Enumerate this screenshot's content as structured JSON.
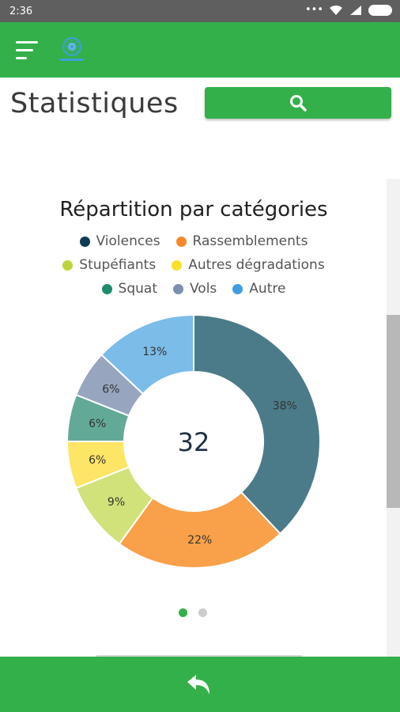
{
  "status_bar": {
    "time": "2:36"
  },
  "app_bar": {
    "menu_icon": "hamburger-menu-icon",
    "logo": "app-logo"
  },
  "page": {
    "title": "Statistiques"
  },
  "search": {
    "icon": "search-icon"
  },
  "colors": {
    "primary": "#33b04a",
    "status_bar": "#5f5f5f",
    "page_dot_active": "#33b04a",
    "page_dot_inactive": "#cccccc"
  },
  "chart_data": {
    "type": "pie",
    "title": "Répartition par catégories",
    "donut": true,
    "center_label": "32",
    "legend_position": "top",
    "series": [
      {
        "name": "Violences",
        "value": 38,
        "label": "38%",
        "color": "#4b7b88",
        "legend_color": "#0d3a52"
      },
      {
        "name": "Rassemblements",
        "value": 22,
        "label": "22%",
        "color": "#f9a04a",
        "legend_color": "#f7892a"
      },
      {
        "name": "Stupéfiants",
        "value": 9,
        "label": "9%",
        "color": "#d2e27a",
        "legend_color": "#bcd53c"
      },
      {
        "name": "Autres dégradations",
        "value": 6,
        "label": "6%",
        "color": "#fde566",
        "legend_color": "#fbdf2b"
      },
      {
        "name": "Squat",
        "value": 6,
        "label": "6%",
        "color": "#63a997",
        "legend_color": "#1d8c6c"
      },
      {
        "name": "Vols",
        "value": 6,
        "label": "6%",
        "color": "#97a5bf",
        "legend_color": "#7d8fb0"
      },
      {
        "name": "Autre",
        "value": 13,
        "label": "13%",
        "color": "#7bbce8",
        "legend_color": "#3f9ee0"
      }
    ]
  },
  "pager": {
    "pages": 2,
    "active": 0
  },
  "bottom_bar": {
    "back_icon": "back-arrow-icon"
  }
}
